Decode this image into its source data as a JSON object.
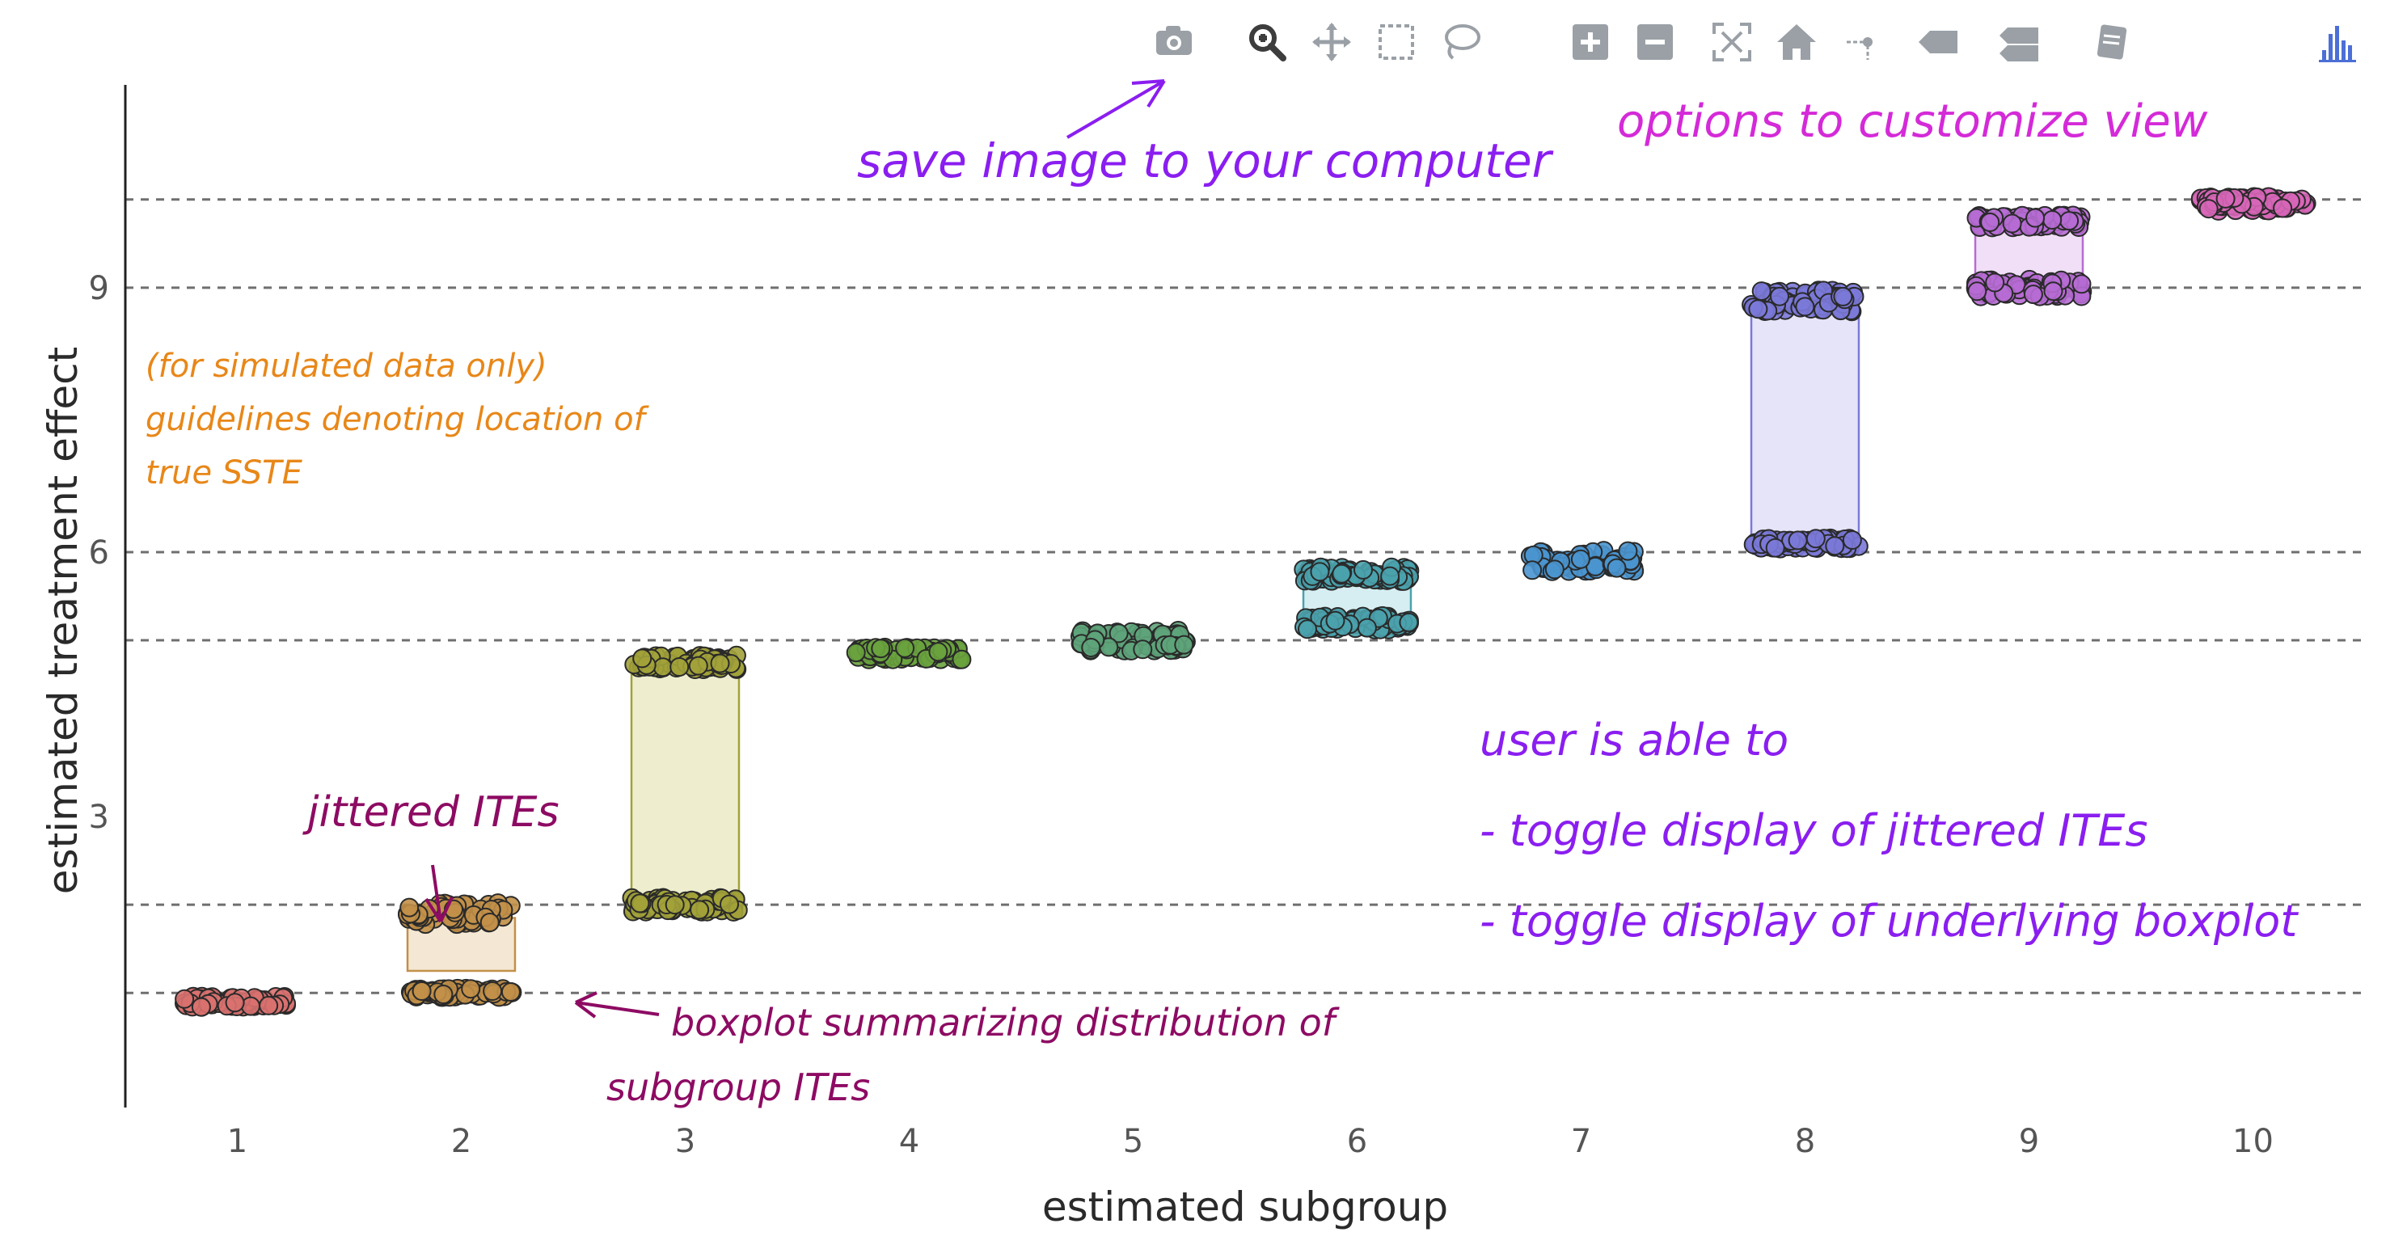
{
  "chart_data": {
    "type": "scatter",
    "xlabel": "estimated subgroup",
    "ylabel": "estimated treatment effect",
    "categories": [
      "1",
      "2",
      "3",
      "4",
      "5",
      "6",
      "7",
      "8",
      "9",
      "10"
    ],
    "ylim": [
      -0.3,
      11.3
    ],
    "yticks": [
      "3",
      "6",
      "9"
    ],
    "ytick_values": [
      3,
      6,
      9
    ],
    "guidelines": [
      1,
      2,
      5,
      6,
      9,
      10
    ],
    "grid": "dashed horizontal guidelines",
    "colors": [
      "#d9716f",
      "#c29048",
      "#a2a23a",
      "#6aa33e",
      "#5ea47a",
      "#4aa2ad",
      "#4a95cf",
      "#7b79d8",
      "#b76bd4",
      "#d866b8"
    ],
    "box_fill": [
      "#f6dede",
      "#f3e6cf",
      "#ececca",
      "#dff0d3",
      "#d9efdd",
      "#d2ecef",
      "#d3e6f6",
      "#e2e1f8",
      "#efdcf6",
      "#f7dcef"
    ],
    "groups": [
      {
        "x": "1",
        "clusters": [
          {
            "y": 0.9,
            "spread": 0.06
          }
        ],
        "box": [
          0.85,
          0.95
        ]
      },
      {
        "x": "2",
        "clusters": [
          {
            "y": 1.0,
            "spread": 0.05
          },
          {
            "y": 1.9,
            "spread": 0.12
          }
        ],
        "box": [
          1.25,
          1.85
        ]
      },
      {
        "x": "3",
        "clusters": [
          {
            "y": 2.0,
            "spread": 0.08
          },
          {
            "y": 4.75,
            "spread": 0.08
          }
        ],
        "box": [
          2.0,
          4.75
        ]
      },
      {
        "x": "4",
        "clusters": [
          {
            "y": 4.85,
            "spread": 0.07
          }
        ],
        "box": [
          4.82,
          4.88
        ]
      },
      {
        "x": "5",
        "clusters": [
          {
            "y": 5.0,
            "spread": 0.12
          }
        ],
        "box": [
          4.95,
          5.08
        ]
      },
      {
        "x": "6",
        "clusters": [
          {
            "y": 5.2,
            "spread": 0.08
          },
          {
            "y": 5.75,
            "spread": 0.08
          }
        ],
        "box": [
          5.25,
          5.72
        ]
      },
      {
        "x": "7",
        "clusters": [
          {
            "y": 5.9,
            "spread": 0.12
          }
        ],
        "box": [
          5.85,
          6.0
        ]
      },
      {
        "x": "8",
        "clusters": [
          {
            "y": 6.1,
            "spread": 0.06
          },
          {
            "y": 8.85,
            "spread": 0.12
          }
        ],
        "box": [
          6.1,
          8.85
        ]
      },
      {
        "x": "9",
        "clusters": [
          {
            "y": 9.0,
            "spread": 0.1
          },
          {
            "y": 9.75,
            "spread": 0.07
          }
        ],
        "box": [
          9.05,
          9.7
        ]
      },
      {
        "x": "10",
        "clusters": [
          {
            "y": 9.95,
            "spread": 0.08
          }
        ],
        "box": [
          9.9,
          10.0
        ]
      }
    ]
  },
  "modebar": [
    {
      "name": "camera-icon",
      "color": "#9aa0a6"
    },
    {
      "name": "zoom-icon",
      "color": "#3d3d3d"
    },
    {
      "name": "pan-icon",
      "color": "#9aa0a6"
    },
    {
      "name": "box-select-icon",
      "color": "#9aa0a6"
    },
    {
      "name": "lasso-icon",
      "color": "#9aa0a6"
    },
    {
      "name": "zoom-in-icon",
      "color": "#9aa0a6"
    },
    {
      "name": "zoom-out-icon",
      "color": "#9aa0a6"
    },
    {
      "name": "autoscale-icon",
      "color": "#9aa0a6"
    },
    {
      "name": "home-icon",
      "color": "#9aa0a6"
    },
    {
      "name": "spike-lines-icon",
      "color": "#9aa0a6"
    },
    {
      "name": "hover-closest-icon",
      "color": "#9aa0a6"
    },
    {
      "name": "hover-compare-icon",
      "color": "#9aa0a6"
    },
    {
      "name": "edit-chart-icon",
      "color": "#9aa0a6"
    },
    {
      "name": "plotly-logo-icon",
      "color": "#4c6ed6"
    }
  ],
  "annotations": {
    "save_image": "save image to your computer",
    "customize": "options to customize view",
    "guidelines": [
      "(for simulated data only)",
      "guidelines denoting location of",
      "true SSTE"
    ],
    "jittered": "jittered ITEs",
    "boxplot": [
      "boxplot summarizing distribution of",
      "subgroup ITEs"
    ],
    "user": [
      "user is able to",
      "- toggle display of jittered ITEs",
      "- toggle display of underlying boxplot"
    ]
  }
}
